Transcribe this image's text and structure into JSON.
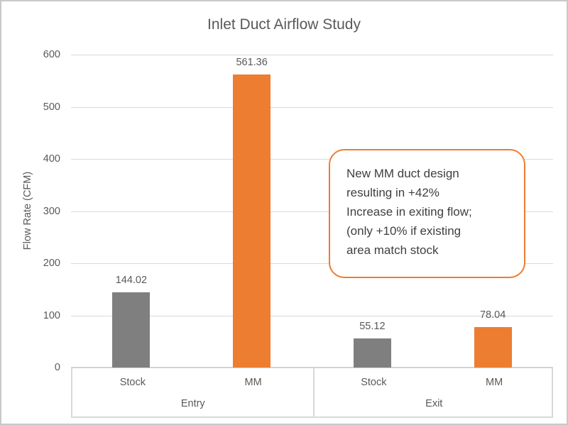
{
  "window": {
    "background": "#ffffff",
    "frame_border_color": "#c9c9c9"
  },
  "chart_data": {
    "type": "bar",
    "title": "Inlet Duct Airflow Study",
    "xlabel": "",
    "ylabel": "Flow Rate (CFM)",
    "ylim": [
      0,
      600
    ],
    "yticks": [
      0,
      100,
      200,
      300,
      400,
      500,
      600
    ],
    "grid": true,
    "legend": "none",
    "groups": [
      "Entry",
      "Exit"
    ],
    "categories": [
      {
        "group": "Entry",
        "name": "Stock",
        "value": 144.02,
        "label": "144.02",
        "color_key": "stock"
      },
      {
        "group": "Entry",
        "name": "MM",
        "value": 561.36,
        "label": "561.36",
        "color_key": "mm"
      },
      {
        "group": "Exit",
        "name": "Stock",
        "value": 55.12,
        "label": "55.12",
        "color_key": "stock"
      },
      {
        "group": "Exit",
        "name": "MM",
        "value": 78.04,
        "label": "78.04",
        "color_key": "mm"
      }
    ],
    "colors": {
      "stock": "#7f7f7f",
      "mm": "#ed7d31",
      "gridline": "#d9d9d9",
      "text": "#595959"
    },
    "annotation": {
      "text": "New MM duct design\nresulting in +42%\nIncrease in exiting flow;\n(only +10% if existing\narea match stock",
      "border_color": "#ed7d31"
    }
  }
}
